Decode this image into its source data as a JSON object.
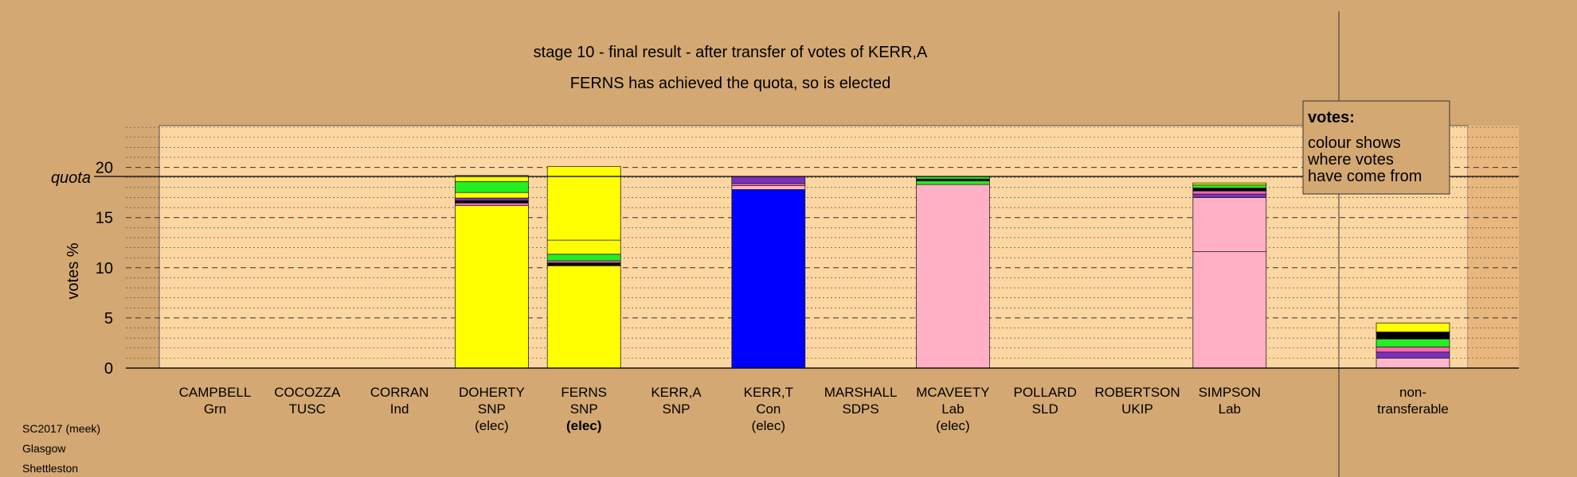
{
  "chart_data": {
    "type": "bar",
    "stacked": true,
    "title": "stage 10 - final result - after transfer of votes of KERR,A",
    "subtitle": "FERNS has achieved the quota, so is elected",
    "ylabel": "votes %",
    "quota_label": "quota",
    "quota": 19.1,
    "ylim": [
      0,
      24
    ],
    "yticks": [
      0,
      5,
      10,
      15,
      20
    ],
    "grid": true,
    "legend": {
      "position": "top-right",
      "title": "votes:",
      "lines": [
        "colour shows",
        "where votes",
        "have come from"
      ]
    },
    "categories": [
      {
        "name": "CAMPBELL",
        "party": "Grn",
        "status": ""
      },
      {
        "name": "COCOZZA",
        "party": "TUSC",
        "status": ""
      },
      {
        "name": "CORRAN",
        "party": "Ind",
        "status": ""
      },
      {
        "name": "DOHERTY",
        "party": "SNP",
        "status": "(elec)"
      },
      {
        "name": "FERNS",
        "party": "SNP",
        "status": "(elec)"
      },
      {
        "name": "KERR,A",
        "party": "SNP",
        "status": ""
      },
      {
        "name": "KERR,T",
        "party": "Con",
        "status": "(elec)"
      },
      {
        "name": "MARSHALL",
        "party": "SDPS",
        "status": ""
      },
      {
        "name": "MCAVEETY",
        "party": "Lab",
        "status": "(elec)"
      },
      {
        "name": "POLLARD",
        "party": "SLD",
        "status": ""
      },
      {
        "name": "ROBERTSON",
        "party": "UKIP",
        "status": ""
      },
      {
        "name": "SIMPSON",
        "party": "Lab",
        "status": ""
      }
    ],
    "nontransferable_label": [
      "non-",
      "transferable"
    ],
    "stacks": [
      [],
      [],
      [],
      [
        {
          "value": 16.2,
          "color": "#ffff00"
        },
        {
          "value": 0.25,
          "color": "#ff69b4"
        },
        {
          "value": 0.25,
          "color": "#000000"
        },
        {
          "value": 0.25,
          "color": "#7b2fbe"
        },
        {
          "value": 0.55,
          "color": "#ffff00"
        },
        {
          "value": 1.1,
          "color": "#22ee22"
        },
        {
          "value": 0.6,
          "color": "#ffff00"
        }
      ],
      [
        {
          "value": 10.2,
          "color": "#ffff00"
        },
        {
          "value": 0.3,
          "color": "#000000"
        },
        {
          "value": 0.2,
          "color": "#ff69b4"
        },
        {
          "value": 0.65,
          "color": "#22ee22"
        },
        {
          "value": 1.4,
          "color": "#ffff00"
        },
        {
          "value": 7.35,
          "color": "#ffff00"
        }
      ],
      [],
      [
        {
          "value": 17.8,
          "color": "#0000ff"
        },
        {
          "value": 0.4,
          "color": "#ffb6c8"
        },
        {
          "value": 0.2,
          "color": "#ff69b4"
        },
        {
          "value": 0.7,
          "color": "#7b2fbe"
        }
      ],
      [],
      [
        {
          "value": 18.3,
          "color": "#ffb0c4"
        },
        {
          "value": 0.35,
          "color": "#22ee22"
        },
        {
          "value": 0.2,
          "color": "#000000"
        },
        {
          "value": 0.25,
          "color": "#22ee22"
        }
      ],
      [],
      [],
      [
        {
          "value": 11.6,
          "color": "#ffb0c4"
        },
        {
          "value": 5.4,
          "color": "#ffb0c4"
        },
        {
          "value": 0.35,
          "color": "#7b2fbe"
        },
        {
          "value": 0.3,
          "color": "#ff69b4"
        },
        {
          "value": 0.3,
          "color": "#000000"
        },
        {
          "value": 0.3,
          "color": "#22ee22"
        },
        {
          "value": 0.2,
          "color": "#ffff00"
        }
      ]
    ],
    "nontransferable_stack": [
      {
        "value": 1.0,
        "color": "#ffb6c8"
      },
      {
        "value": 0.6,
        "color": "#7b2fbe"
      },
      {
        "value": 0.5,
        "color": "#ff69b4"
      },
      {
        "value": 0.8,
        "color": "#22ee22"
      },
      {
        "value": 0.7,
        "color": "#000000"
      },
      {
        "value": 0.9,
        "color": "#ffff00"
      }
    ]
  },
  "colors": {
    "background": "#d4a872",
    "plot_area": "#fdd7a2",
    "shaded_strip": "#e8b77e"
  },
  "footer": {
    "source": "SC2017 (meek)",
    "council": "Glasgow",
    "ward": "Shettleston"
  }
}
